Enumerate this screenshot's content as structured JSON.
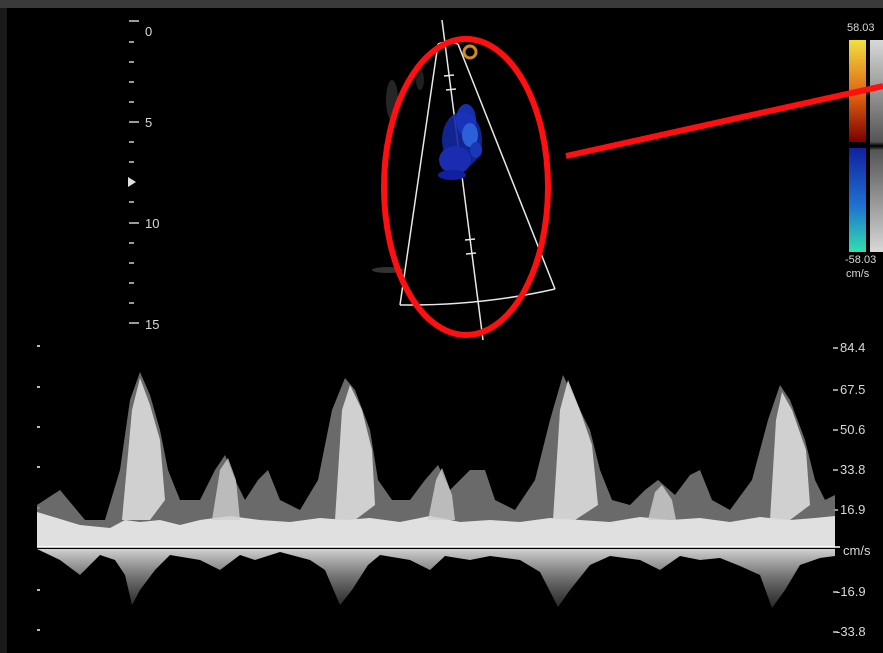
{
  "depth_scale": {
    "labels": [
      "0",
      "5",
      "10",
      "15"
    ],
    "values": [
      0,
      5,
      10,
      15
    ]
  },
  "color_scale": {
    "max_label": "58.03",
    "min_label": "-58.03",
    "unit": "cm/s",
    "colors": {
      "positive_top": "#f0e040",
      "positive_mid": "#e06010",
      "positive_bottom": "#7a0000",
      "negative_top": "#1020a0",
      "negative_mid": "#2070d0",
      "negative_bottom": "#30e0b0"
    }
  },
  "spectral_scale": {
    "labels": [
      "84.4",
      "67.5",
      "50.6",
      "33.8",
      "16.9",
      "cm/s",
      "-16.9",
      "-33.8"
    ],
    "values": [
      84.4,
      67.5,
      50.6,
      33.8,
      16.9,
      0,
      -16.9,
      -33.8
    ]
  },
  "annotation": {
    "color": "#ff1010"
  },
  "colors": {
    "background": "#000000",
    "text": "#d8d8d8",
    "baseline": "#ffffff"
  }
}
